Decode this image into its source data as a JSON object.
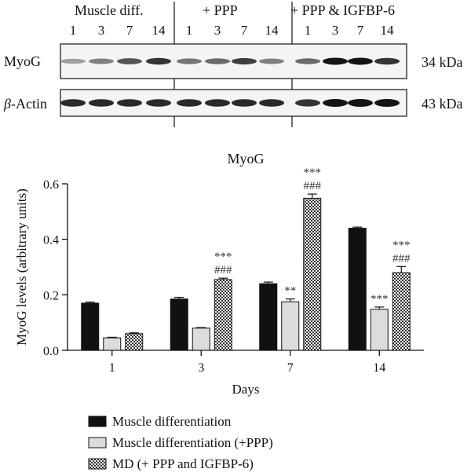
{
  "blot": {
    "groups": [
      {
        "label": "Muscle diff.",
        "lanes": [
          "1",
          "3",
          "7",
          "14"
        ]
      },
      {
        "label": "+ PPP",
        "lanes": [
          "1",
          "3",
          "7",
          "14"
        ]
      },
      {
        "label": "+ PPP & IGFBP-6",
        "lanes": [
          "1",
          "3",
          "7",
          "14"
        ]
      }
    ],
    "rows": [
      {
        "label": "MyoG",
        "size": "34 kDa",
        "band_intensity": [
          0.35,
          0.5,
          0.7,
          0.85,
          0.55,
          0.6,
          0.8,
          0.5,
          0.6,
          1.0,
          1.0,
          0.85
        ]
      },
      {
        "label_prefix": "β",
        "label_rest": "-Actin",
        "size": "43 kDa",
        "band_intensity": [
          0.9,
          0.9,
          0.9,
          0.9,
          0.9,
          0.9,
          0.9,
          0.9,
          0.85,
          1.0,
          1.0,
          1.0
        ]
      }
    ]
  },
  "chart_data": {
    "type": "bar",
    "title": "MyoG",
    "xlabel": "Days",
    "ylabel": "MyoG levels (arbitrary units)",
    "ylim": [
      0,
      0.6
    ],
    "yticks": [
      "0.0",
      "0.2",
      "0.4",
      "0.6"
    ],
    "categories": [
      "1",
      "3",
      "7",
      "14"
    ],
    "series": [
      {
        "name": "Muscle differentiation",
        "fill": "solid",
        "color": "#111111",
        "values": [
          0.17,
          0.185,
          0.24,
          0.44
        ],
        "errors": [
          0.004,
          0.006,
          0.006,
          0.004
        ],
        "annotations": [
          [],
          [],
          [],
          []
        ]
      },
      {
        "name": "Muscle differentiation (+PPP)",
        "fill": "light",
        "color": "#d9d9d9",
        "values": [
          0.045,
          0.08,
          0.175,
          0.148
        ],
        "errors": [
          0.002,
          0.002,
          0.01,
          0.008
        ],
        "annotations": [
          [],
          [],
          [
            "**"
          ],
          [
            "***"
          ]
        ]
      },
      {
        "name": "MD (+ PPP and IGFBP-6)",
        "fill": "checker",
        "color": "#555555",
        "values": [
          0.06,
          0.255,
          0.548,
          0.28
        ],
        "errors": [
          0.003,
          0.005,
          0.015,
          0.022
        ],
        "annotations": [
          [],
          [
            "***",
            "###"
          ],
          [
            "***",
            "###"
          ],
          [
            "***",
            "###"
          ]
        ]
      }
    ]
  }
}
